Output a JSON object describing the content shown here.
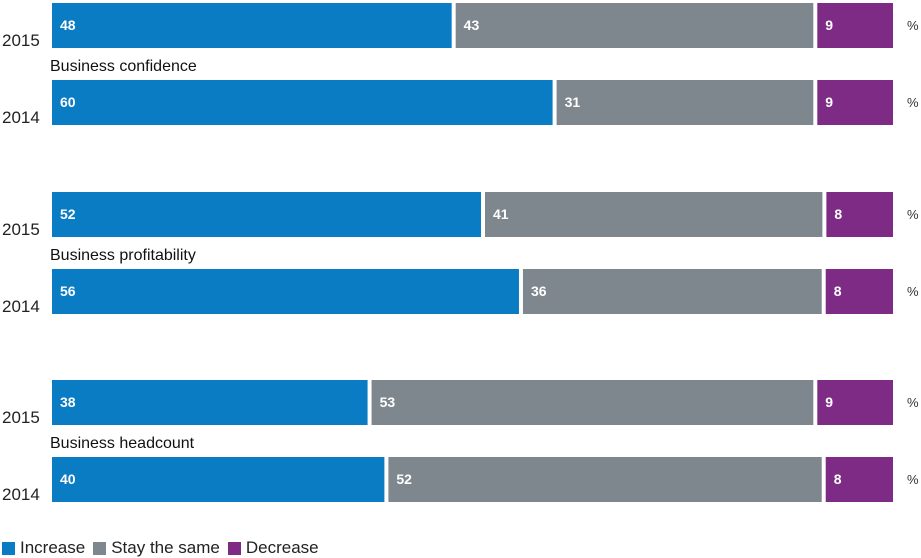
{
  "chart_data": {
    "type": "bar",
    "orientation": "horizontal",
    "stacked": true,
    "xlim": [
      0,
      100
    ],
    "unit": "%",
    "colors": {
      "Increase": "#0a7cc4",
      "Stay the same": "#7f878e",
      "Decrease": "#7e2b85"
    },
    "legend_position": "bottom-left",
    "legend": [
      "Increase",
      "Stay the same",
      "Decrease"
    ],
    "groups": [
      {
        "label": "Business confidence",
        "rows": [
          {
            "year": "2015",
            "values": [
              48,
              43,
              9
            ]
          },
          {
            "year": "2014",
            "values": [
              60,
              31,
              9
            ]
          }
        ]
      },
      {
        "label": "Business profitability",
        "rows": [
          {
            "year": "2015",
            "values": [
              52,
              41,
              8
            ]
          },
          {
            "year": "2014",
            "values": [
              56,
              36,
              8
            ]
          }
        ]
      },
      {
        "label": "Business headcount",
        "rows": [
          {
            "year": "2015",
            "values": [
              38,
              53,
              9
            ]
          },
          {
            "year": "2014",
            "values": [
              40,
              52,
              8
            ]
          }
        ]
      }
    ]
  }
}
